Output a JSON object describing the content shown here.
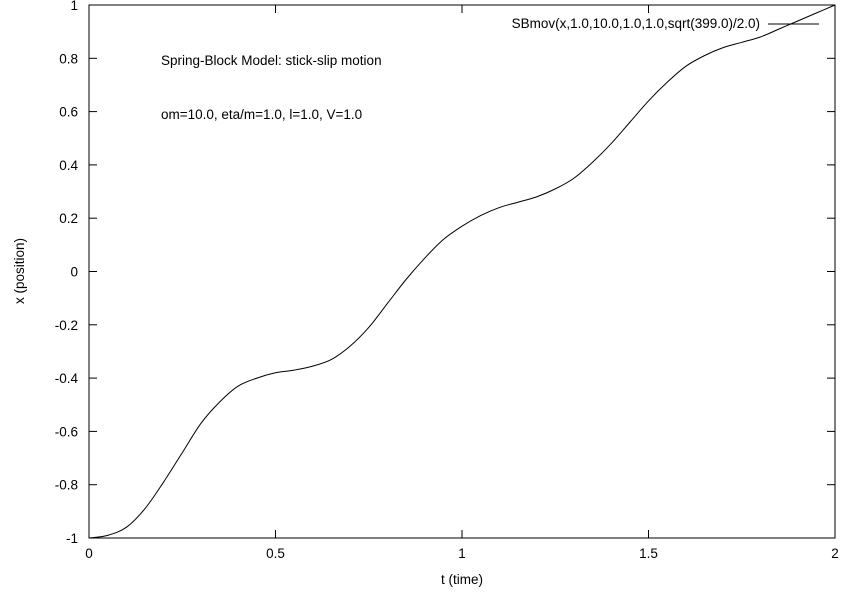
{
  "chart_data": {
    "type": "line",
    "title": "",
    "xlabel": "t (time)",
    "ylabel": "x (position)",
    "xlim": [
      0,
      2
    ],
    "ylim": [
      -1,
      1
    ],
    "x_ticks": [
      0,
      0.5,
      1,
      1.5,
      2
    ],
    "x_tick_labels": [
      "0",
      "0.5",
      "1",
      "1.5",
      "2"
    ],
    "y_ticks": [
      -1,
      -0.8,
      -0.6,
      -0.4,
      -0.2,
      0,
      0.2,
      0.4,
      0.6,
      0.8,
      1
    ],
    "y_tick_labels": [
      "-1",
      "-0.8",
      "-0.6",
      "-0.4",
      "-0.2",
      "0",
      "0.2",
      "0.4",
      "0.6",
      "0.8",
      "1"
    ],
    "grid": false,
    "legend_position": "top-right",
    "annotations": [
      "Spring-Block Model: stick-slip motion",
      "om=10.0, eta/m=1.0, l=1.0, V=1.0"
    ],
    "series": [
      {
        "name": "SBmov(x,1.0,10.0,1.0,1.0,sqrt(399.0)/2.0)",
        "color": "#000000",
        "x": [
          0,
          0.05,
          0.1,
          0.15,
          0.2,
          0.25,
          0.3,
          0.35,
          0.4,
          0.45,
          0.5,
          0.55,
          0.6,
          0.65,
          0.7,
          0.75,
          0.8,
          0.85,
          0.9,
          0.95,
          1.0,
          1.05,
          1.1,
          1.15,
          1.2,
          1.25,
          1.3,
          1.35,
          1.4,
          1.45,
          1.5,
          1.55,
          1.6,
          1.65,
          1.7,
          1.75,
          1.8,
          1.85,
          1.9,
          1.95,
          2.0
        ],
        "y": [
          -1.0,
          -0.99,
          -0.96,
          -0.89,
          -0.79,
          -0.68,
          -0.57,
          -0.49,
          -0.43,
          -0.4,
          -0.38,
          -0.37,
          -0.355,
          -0.33,
          -0.28,
          -0.21,
          -0.12,
          -0.03,
          0.05,
          0.12,
          0.17,
          0.21,
          0.24,
          0.26,
          0.28,
          0.31,
          0.35,
          0.41,
          0.48,
          0.56,
          0.64,
          0.71,
          0.77,
          0.81,
          0.84,
          0.86,
          0.88,
          0.91,
          0.94,
          0.97,
          1.0
        ]
      }
    ]
  }
}
